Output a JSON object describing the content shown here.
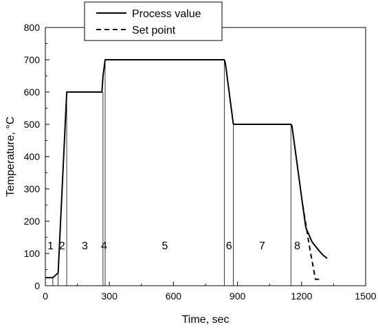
{
  "chart_data": {
    "type": "line",
    "xlabel": "Time, sec",
    "ylabel": "Temperature, °C",
    "xlim": [
      0,
      1500
    ],
    "ylim": [
      0,
      800
    ],
    "xticks": [
      0,
      300,
      600,
      900,
      1200,
      1500
    ],
    "yticks": [
      0,
      100,
      200,
      300,
      400,
      500,
      600,
      700,
      800
    ],
    "grid": false,
    "legend_position": "top-center",
    "series": [
      {
        "name": "Process value",
        "style": "solid",
        "x": [
          0,
          35,
          60,
          100,
          105,
          110,
          200,
          265,
          270,
          280,
          285,
          300,
          600,
          838,
          843,
          880,
          885,
          1000,
          1150,
          1155,
          1205,
          1220,
          1250,
          1280,
          1300,
          1320
        ],
        "y": [
          25,
          25,
          40,
          600,
          600,
          600,
          600,
          600,
          650,
          700,
          700,
          700,
          700,
          700,
          690,
          502,
          500,
          500,
          500,
          495,
          250,
          180,
          135,
          110,
          95,
          85
        ]
      },
      {
        "name": "Set point",
        "style": "dashed",
        "x": [
          1205,
          1240,
          1265,
          1270,
          1290
        ],
        "y": [
          250,
          110,
          20,
          20,
          20
        ]
      }
    ],
    "phase_lines_x": [
      35,
      60,
      100,
      270,
      280,
      838,
      880,
      1150
    ],
    "phase_labels": [
      {
        "text": "1",
        "x": 24
      },
      {
        "text": "2",
        "x": 78
      },
      {
        "text": "3",
        "x": 185
      },
      {
        "text": "4",
        "x": 275
      },
      {
        "text": "5",
        "x": 560
      },
      {
        "text": "6",
        "x": 860
      },
      {
        "text": "7",
        "x": 1015
      },
      {
        "text": "8",
        "x": 1180
      }
    ],
    "phase_label_y": 100
  }
}
